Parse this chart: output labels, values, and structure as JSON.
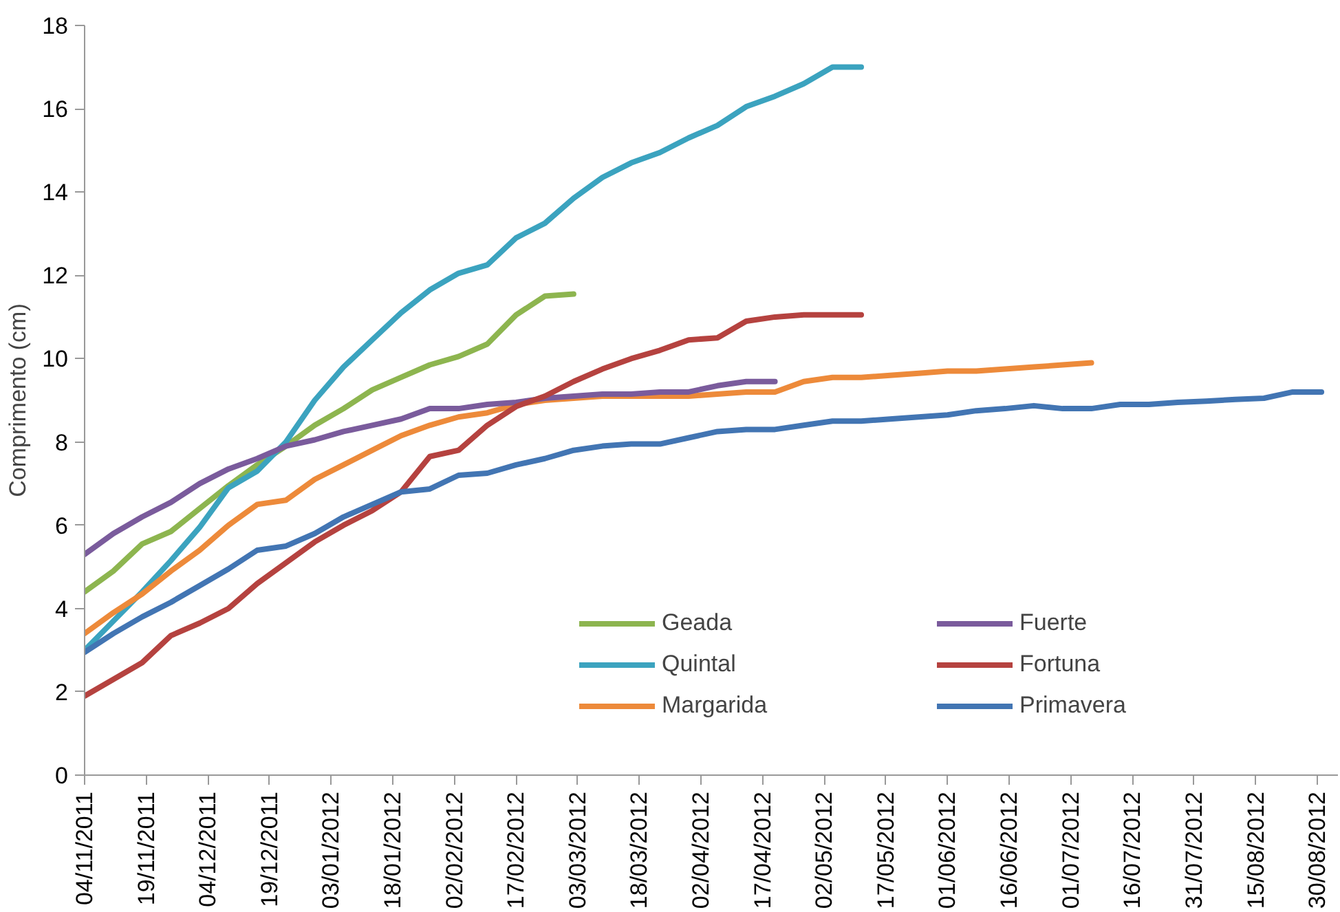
{
  "chart_data": {
    "type": "line",
    "ylabel": "Comprimento (cm)",
    "x": [
      "2011-11-04",
      "2011-11-11",
      "2011-11-18",
      "2011-11-25",
      "2011-12-02",
      "2011-12-09",
      "2011-12-16",
      "2011-12-23",
      "2011-12-30",
      "2012-01-06",
      "2012-01-13",
      "2012-01-20",
      "2012-01-27",
      "2012-02-03",
      "2012-02-10",
      "2012-02-17",
      "2012-02-24",
      "2012-03-02",
      "2012-03-09",
      "2012-03-16",
      "2012-03-23",
      "2012-03-30",
      "2012-04-06",
      "2012-04-13",
      "2012-04-20",
      "2012-04-27",
      "2012-05-04",
      "2012-05-11",
      "2012-05-18",
      "2012-05-25",
      "2012-06-01",
      "2012-06-08",
      "2012-06-15",
      "2012-06-22",
      "2012-06-29",
      "2012-07-06",
      "2012-07-13",
      "2012-07-20",
      "2012-07-27",
      "2012-08-03",
      "2012-08-10",
      "2012-08-17",
      "2012-08-24",
      "2012-08-31"
    ],
    "series": [
      {
        "name": "Geada",
        "color": "#8db54f",
        "values": [
          4.4,
          4.9,
          5.55,
          5.85,
          6.4,
          6.95,
          7.45,
          7.9,
          8.4,
          8.8,
          9.25,
          9.55,
          9.85,
          10.05,
          10.35,
          11.05,
          11.5,
          11.55,
          null,
          null,
          null,
          null,
          null,
          null,
          null,
          null,
          null,
          null,
          null,
          null,
          null,
          null,
          null,
          null,
          null,
          null,
          null,
          null,
          null,
          null,
          null,
          null,
          null,
          null
        ]
      },
      {
        "name": "Quintal",
        "color": "#3ba3bf",
        "values": [
          3.0,
          3.7,
          4.4,
          5.15,
          5.95,
          6.9,
          7.3,
          8.0,
          9.0,
          9.8,
          10.45,
          11.1,
          11.65,
          12.05,
          12.25,
          12.9,
          13.25,
          13.85,
          14.35,
          14.7,
          14.95,
          15.3,
          15.6,
          16.05,
          16.3,
          16.6,
          17.0,
          17.0,
          null,
          null,
          null,
          null,
          null,
          null,
          null,
          null,
          null,
          null,
          null,
          null,
          null,
          null,
          null,
          null
        ]
      },
      {
        "name": "Margarida",
        "color": "#ed8a3a",
        "values": [
          3.4,
          3.9,
          4.35,
          4.9,
          5.4,
          6.0,
          6.5,
          6.6,
          7.1,
          7.45,
          7.8,
          8.15,
          8.4,
          8.6,
          8.7,
          8.9,
          9.0,
          9.05,
          9.1,
          9.1,
          9.1,
          9.1,
          9.15,
          9.2,
          9.2,
          9.45,
          9.55,
          9.55,
          9.6,
          9.65,
          9.7,
          9.7,
          9.75,
          9.8,
          9.85,
          9.9,
          null,
          null,
          null,
          null,
          null,
          null,
          null,
          null
        ]
      },
      {
        "name": "Fuerte",
        "color": "#7a5b9c",
        "values": [
          5.3,
          5.8,
          6.2,
          6.55,
          7.0,
          7.35,
          7.6,
          7.9,
          8.05,
          8.25,
          8.4,
          8.55,
          8.8,
          8.8,
          8.9,
          8.95,
          9.05,
          9.1,
          9.15,
          9.15,
          9.2,
          9.2,
          9.35,
          9.45,
          9.45,
          null,
          null,
          null,
          null,
          null,
          null,
          null,
          null,
          null,
          null,
          null,
          null,
          null,
          null,
          null,
          null,
          null,
          null,
          null
        ]
      },
      {
        "name": "Fortuna",
        "color": "#b5423f",
        "values": [
          1.9,
          2.3,
          2.7,
          3.35,
          3.65,
          4.0,
          4.6,
          5.1,
          5.6,
          6.0,
          6.35,
          6.8,
          7.65,
          7.8,
          8.4,
          8.85,
          9.1,
          9.45,
          9.75,
          10.0,
          10.2,
          10.45,
          10.5,
          10.9,
          11.0,
          11.05,
          11.05,
          11.05,
          null,
          null,
          null,
          null,
          null,
          null,
          null,
          null,
          null,
          null,
          null,
          null,
          null,
          null,
          null,
          null
        ]
      },
      {
        "name": "Primavera",
        "color": "#4275b3",
        "values": [
          2.95,
          3.4,
          3.8,
          4.15,
          4.55,
          4.95,
          5.4,
          5.5,
          5.8,
          6.2,
          6.5,
          6.8,
          6.87,
          7.2,
          7.25,
          7.45,
          7.6,
          7.8,
          7.9,
          7.95,
          7.95,
          8.1,
          8.25,
          8.3,
          8.3,
          8.4,
          8.5,
          8.5,
          8.55,
          8.6,
          8.65,
          8.75,
          8.8,
          8.87,
          8.8,
          8.8,
          8.9,
          8.9,
          8.95,
          8.98,
          9.02,
          9.05,
          9.2,
          9.2
        ]
      }
    ],
    "xlim": [
      "2011-11-04",
      "2012-09-04"
    ],
    "xticks": [
      {
        "value": "2011-11-04",
        "label": "04/11/2011"
      },
      {
        "value": "2011-11-19",
        "label": "19/11/2011"
      },
      {
        "value": "2011-12-04",
        "label": "04/12/2011"
      },
      {
        "value": "2011-12-19",
        "label": "19/12/2011"
      },
      {
        "value": "2012-01-03",
        "label": "03/01/2012"
      },
      {
        "value": "2012-01-18",
        "label": "18/01/2012"
      },
      {
        "value": "2012-02-02",
        "label": "02/02/2012"
      },
      {
        "value": "2012-02-17",
        "label": "17/02/2012"
      },
      {
        "value": "2012-03-03",
        "label": "03/03/2012"
      },
      {
        "value": "2012-03-18",
        "label": "18/03/2012"
      },
      {
        "value": "2012-04-02",
        "label": "02/04/2012"
      },
      {
        "value": "2012-04-17",
        "label": "17/04/2012"
      },
      {
        "value": "2012-05-02",
        "label": "02/05/2012"
      },
      {
        "value": "2012-05-17",
        "label": "17/05/2012"
      },
      {
        "value": "2012-06-01",
        "label": "01/06/2012"
      },
      {
        "value": "2012-06-16",
        "label": "16/06/2012"
      },
      {
        "value": "2012-07-01",
        "label": "01/07/2012"
      },
      {
        "value": "2012-07-16",
        "label": "16/07/2012"
      },
      {
        "value": "2012-07-31",
        "label": "31/07/2012"
      },
      {
        "value": "2012-08-15",
        "label": "15/08/2012"
      },
      {
        "value": "2012-08-30",
        "label": "30/08/2012"
      }
    ],
    "ylim": [
      0,
      18
    ],
    "yticks": [
      0,
      2,
      4,
      6,
      8,
      10,
      12,
      14,
      16,
      18
    ],
    "grid": false,
    "legend": "bottom right",
    "marker": "none",
    "line_style": "solid"
  }
}
